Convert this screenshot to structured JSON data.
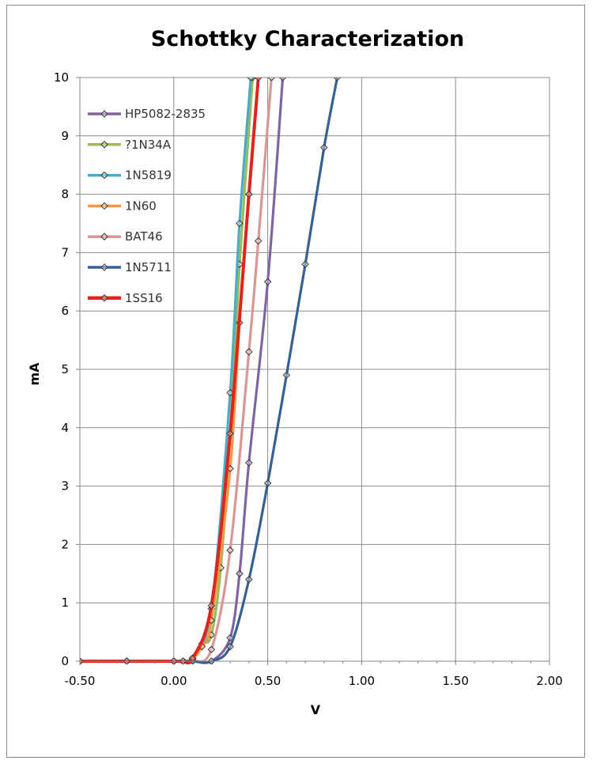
{
  "chart_data": {
    "type": "line",
    "title": "Schottky Characterization",
    "xlabel": "V",
    "ylabel": "mA",
    "xlim": [
      -0.5,
      2.0
    ],
    "ylim": [
      0,
      10
    ],
    "x_ticks": [
      -0.5,
      0.0,
      0.5,
      1.0,
      1.5,
      2.0
    ],
    "x_tick_labels": [
      "-0.50",
      "0.00",
      "0.50",
      "1.00",
      "1.50",
      "2.00"
    ],
    "y_ticks": [
      0,
      1,
      2,
      3,
      4,
      5,
      6,
      7,
      8,
      9,
      10
    ],
    "y_tick_labels": [
      "0",
      "1",
      "2",
      "3",
      "4",
      "5",
      "6",
      "7",
      "8",
      "9",
      "10"
    ],
    "grid": true,
    "legend_position": "top-left",
    "series": [
      {
        "name": "HP5082-2835",
        "color": "#8064a2",
        "points": [
          [
            -0.5,
            0
          ],
          [
            -0.25,
            0
          ],
          [
            0,
            0
          ],
          [
            0.05,
            0
          ],
          [
            0.1,
            0
          ],
          [
            0.2,
            0
          ],
          [
            0.3,
            0.4
          ],
          [
            0.35,
            1.5
          ],
          [
            0.4,
            3.4
          ],
          [
            0.5,
            6.5
          ],
          [
            0.58,
            10
          ]
        ]
      },
      {
        "name": "?1N34A",
        "color": "#9bbb59",
        "points": [
          [
            -0.5,
            0
          ],
          [
            -0.25,
            0
          ],
          [
            0,
            0
          ],
          [
            0.05,
            0
          ],
          [
            0.1,
            0.05
          ],
          [
            0.15,
            0.3
          ],
          [
            0.2,
            0.45
          ],
          [
            0.25,
            1.6
          ],
          [
            0.3,
            3.9
          ],
          [
            0.35,
            6.8
          ],
          [
            0.42,
            10
          ]
        ]
      },
      {
        "name": "1N5819",
        "color": "#4bacc6",
        "points": [
          [
            -0.5,
            0
          ],
          [
            -0.25,
            0
          ],
          [
            0,
            0
          ],
          [
            0.05,
            0
          ],
          [
            0.1,
            0.05
          ],
          [
            0.2,
            0.9
          ],
          [
            0.3,
            4.6
          ],
          [
            0.35,
            7.5
          ],
          [
            0.41,
            10
          ]
        ]
      },
      {
        "name": "1N60",
        "color": "#f79646",
        "points": [
          [
            -0.5,
            0
          ],
          [
            -0.25,
            0
          ],
          [
            0,
            0
          ],
          [
            0.05,
            0
          ],
          [
            0.1,
            0.03
          ],
          [
            0.15,
            0.25
          ],
          [
            0.2,
            0.7
          ],
          [
            0.3,
            3.3
          ],
          [
            0.35,
            5.8
          ],
          [
            0.4,
            8.0
          ],
          [
            0.45,
            10
          ]
        ]
      },
      {
        "name": "BAT46",
        "color": "#d99694",
        "points": [
          [
            -0.5,
            0
          ],
          [
            -0.25,
            0
          ],
          [
            0,
            0
          ],
          [
            0.05,
            0
          ],
          [
            0.1,
            0
          ],
          [
            0.2,
            0.2
          ],
          [
            0.3,
            1.9
          ],
          [
            0.4,
            5.3
          ],
          [
            0.45,
            7.2
          ],
          [
            0.52,
            10
          ]
        ]
      },
      {
        "name": "1N5711",
        "color": "#376092",
        "points": [
          [
            -0.5,
            0
          ],
          [
            -0.25,
            0
          ],
          [
            0,
            0
          ],
          [
            0.05,
            0
          ],
          [
            0.1,
            0
          ],
          [
            0.2,
            0
          ],
          [
            0.3,
            0.25
          ],
          [
            0.4,
            1.4
          ],
          [
            0.5,
            3.05
          ],
          [
            0.6,
            4.9
          ],
          [
            0.7,
            6.8
          ],
          [
            0.8,
            8.8
          ],
          [
            0.87,
            10
          ]
        ]
      },
      {
        "name": "1SS16",
        "color": "#e0231b",
        "points": [
          [
            -0.5,
            0
          ],
          [
            -0.25,
            0
          ],
          [
            0,
            0
          ],
          [
            0.05,
            0
          ],
          [
            0.1,
            0.05
          ],
          [
            0.2,
            0.95
          ],
          [
            0.3,
            3.9
          ],
          [
            0.4,
            8.0
          ],
          [
            0.45,
            10
          ]
        ]
      }
    ]
  }
}
